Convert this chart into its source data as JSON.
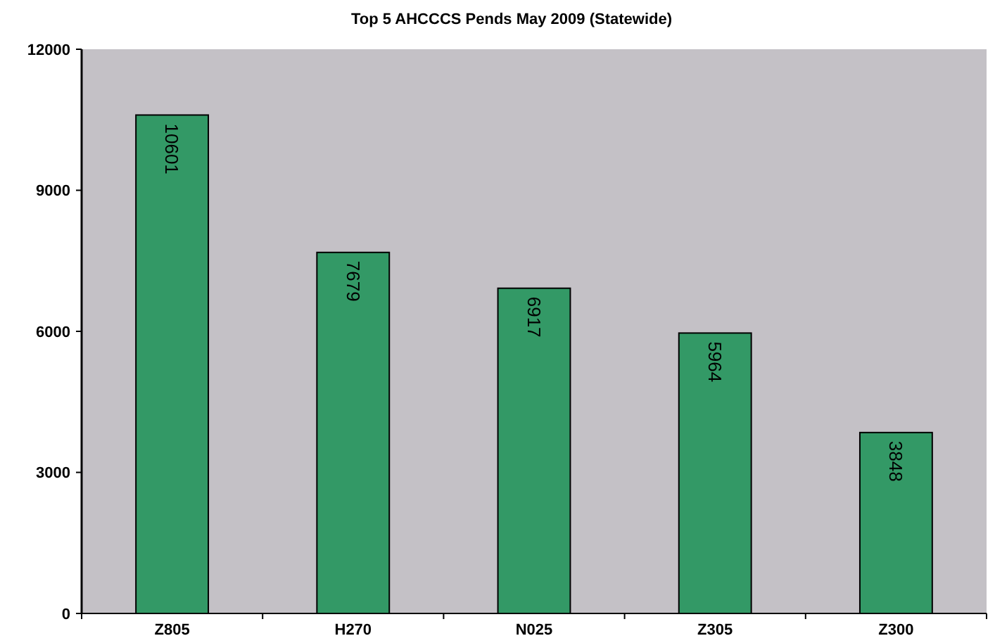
{
  "chart_data": {
    "type": "bar",
    "title": "Top 5 AHCCCS Pends May 2009 (Statewide)",
    "categories": [
      "Z805",
      "H270",
      "N025",
      "Z305",
      "Z300"
    ],
    "values": [
      10601,
      7679,
      6917,
      5964,
      3848
    ],
    "color": "#339966",
    "ylim": [
      0,
      12000
    ],
    "yticks": [
      0,
      3000,
      6000,
      9000,
      12000
    ],
    "grid": false,
    "data_labels": true
  }
}
